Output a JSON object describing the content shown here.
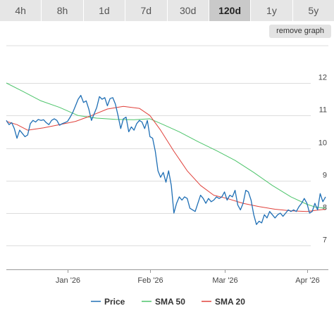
{
  "tabs": [
    {
      "label": "4h"
    },
    {
      "label": "8h"
    },
    {
      "label": "1d"
    },
    {
      "label": "7d"
    },
    {
      "label": "30d"
    },
    {
      "label": "120d",
      "active": true
    },
    {
      "label": "1y"
    },
    {
      "label": "5y"
    }
  ],
  "remove_graph_label": "remove graph",
  "colors": {
    "price": "#1f6fb5",
    "sma50": "#4cc46a",
    "sma20": "#e0403a",
    "grid": "#dddddd",
    "axis": "#444444"
  },
  "chart_data": {
    "type": "line",
    "xlabel": "",
    "ylabel": "",
    "x_ticks": [
      {
        "label": "Jan '26",
        "date": "2026-01-01"
      },
      {
        "label": "Feb '26",
        "date": "2026-02-01"
      },
      {
        "label": "Mar '26",
        "date": "2026-03-01"
      },
      {
        "label": "Apr '26",
        "date": "2026-04-01"
      }
    ],
    "y_ticks": [
      7,
      8,
      9,
      10,
      11,
      12
    ],
    "xlim": [
      "2025-12-09",
      "2026-04-08"
    ],
    "ylim": [
      6.9,
      12.2
    ],
    "grid": true,
    "legend_position": "bottom",
    "series": [
      {
        "name": "Price",
        "points": [
          [
            "2025-12-09",
            10.85
          ],
          [
            "2025-12-10",
            10.72
          ],
          [
            "2025-12-11",
            10.78
          ],
          [
            "2025-12-12",
            10.6
          ],
          [
            "2025-12-13",
            10.3
          ],
          [
            "2025-12-14",
            10.55
          ],
          [
            "2025-12-15",
            10.45
          ],
          [
            "2025-12-16",
            10.35
          ],
          [
            "2025-12-17",
            10.4
          ],
          [
            "2025-12-18",
            10.75
          ],
          [
            "2025-12-19",
            10.85
          ],
          [
            "2025-12-20",
            10.8
          ],
          [
            "2025-12-21",
            10.88
          ],
          [
            "2025-12-22",
            10.85
          ],
          [
            "2025-12-23",
            10.87
          ],
          [
            "2025-12-24",
            10.78
          ],
          [
            "2025-12-25",
            10.72
          ],
          [
            "2025-12-26",
            10.85
          ],
          [
            "2025-12-27",
            10.9
          ],
          [
            "2025-12-28",
            10.85
          ],
          [
            "2025-12-29",
            10.7
          ],
          [
            "2025-12-30",
            10.75
          ],
          [
            "2025-12-31",
            10.78
          ],
          [
            "2026-01-01",
            10.82
          ],
          [
            "2026-01-02",
            10.95
          ],
          [
            "2026-01-03",
            11.1
          ],
          [
            "2026-01-04",
            11.3
          ],
          [
            "2026-01-05",
            11.5
          ],
          [
            "2026-01-06",
            11.62
          ],
          [
            "2026-01-07",
            11.4
          ],
          [
            "2026-01-08",
            11.45
          ],
          [
            "2026-01-09",
            11.2
          ],
          [
            "2026-01-10",
            10.85
          ],
          [
            "2026-01-11",
            11.05
          ],
          [
            "2026-01-12",
            11.25
          ],
          [
            "2026-01-13",
            11.58
          ],
          [
            "2026-01-14",
            11.5
          ],
          [
            "2026-01-15",
            11.55
          ],
          [
            "2026-01-16",
            11.3
          ],
          [
            "2026-01-17",
            11.52
          ],
          [
            "2026-01-18",
            11.55
          ],
          [
            "2026-01-19",
            11.35
          ],
          [
            "2026-01-20",
            11.0
          ],
          [
            "2026-01-21",
            10.6
          ],
          [
            "2026-01-22",
            10.9
          ],
          [
            "2026-01-23",
            10.95
          ],
          [
            "2026-01-24",
            10.5
          ],
          [
            "2026-01-25",
            10.65
          ],
          [
            "2026-01-26",
            10.55
          ],
          [
            "2026-01-27",
            10.75
          ],
          [
            "2026-01-28",
            10.85
          ],
          [
            "2026-01-29",
            10.8
          ],
          [
            "2026-01-30",
            10.6
          ],
          [
            "2026-01-31",
            10.85
          ],
          [
            "2026-02-01",
            10.35
          ],
          [
            "2026-02-02",
            10.3
          ],
          [
            "2026-02-03",
            9.9
          ],
          [
            "2026-02-04",
            9.3
          ],
          [
            "2026-02-05",
            9.1
          ],
          [
            "2026-02-06",
            9.25
          ],
          [
            "2026-02-07",
            8.95
          ],
          [
            "2026-02-08",
            9.3
          ],
          [
            "2026-02-09",
            8.85
          ],
          [
            "2026-02-10",
            8.0
          ],
          [
            "2026-02-11",
            8.3
          ],
          [
            "2026-02-12",
            8.5
          ],
          [
            "2026-02-13",
            8.4
          ],
          [
            "2026-02-14",
            8.5
          ],
          [
            "2026-02-15",
            8.45
          ],
          [
            "2026-02-16",
            8.15
          ],
          [
            "2026-02-17",
            8.1
          ],
          [
            "2026-02-18",
            8.05
          ],
          [
            "2026-02-19",
            8.3
          ],
          [
            "2026-02-20",
            8.55
          ],
          [
            "2026-02-21",
            8.45
          ],
          [
            "2026-02-22",
            8.3
          ],
          [
            "2026-02-23",
            8.45
          ],
          [
            "2026-02-24",
            8.35
          ],
          [
            "2026-02-25",
            8.4
          ],
          [
            "2026-02-26",
            8.5
          ],
          [
            "2026-02-27",
            8.45
          ],
          [
            "2026-02-28",
            8.5
          ],
          [
            "2026-03-01",
            8.65
          ],
          [
            "2026-03-02",
            8.4
          ],
          [
            "2026-03-03",
            8.55
          ],
          [
            "2026-03-04",
            8.5
          ],
          [
            "2026-03-05",
            8.7
          ],
          [
            "2026-03-06",
            8.25
          ],
          [
            "2026-03-07",
            8.1
          ],
          [
            "2026-03-08",
            8.3
          ],
          [
            "2026-03-09",
            8.7
          ],
          [
            "2026-03-10",
            8.65
          ],
          [
            "2026-03-11",
            8.4
          ],
          [
            "2026-03-12",
            7.95
          ],
          [
            "2026-03-13",
            7.65
          ],
          [
            "2026-03-14",
            7.75
          ],
          [
            "2026-03-15",
            7.7
          ],
          [
            "2026-03-16",
            7.95
          ],
          [
            "2026-03-17",
            7.85
          ],
          [
            "2026-03-18",
            8.05
          ],
          [
            "2026-03-19",
            7.95
          ],
          [
            "2026-03-20",
            7.85
          ],
          [
            "2026-03-21",
            7.95
          ],
          [
            "2026-03-22",
            8.0
          ],
          [
            "2026-03-23",
            7.9
          ],
          [
            "2026-03-24",
            8.0
          ],
          [
            "2026-03-25",
            8.1
          ],
          [
            "2026-03-26",
            8.05
          ],
          [
            "2026-03-27",
            8.1
          ],
          [
            "2026-03-28",
            8.05
          ],
          [
            "2026-03-29",
            8.2
          ],
          [
            "2026-03-30",
            8.3
          ],
          [
            "2026-03-31",
            8.45
          ],
          [
            "2026-04-01",
            8.3
          ],
          [
            "2026-04-02",
            8.0
          ],
          [
            "2026-04-03",
            8.05
          ],
          [
            "2026-04-04",
            8.3
          ],
          [
            "2026-04-05",
            8.1
          ],
          [
            "2026-04-06",
            8.6
          ],
          [
            "2026-04-07",
            8.35
          ],
          [
            "2026-04-08",
            8.5
          ]
        ]
      },
      {
        "name": "SMA 50",
        "points": [
          [
            "2025-12-09",
            12.0
          ],
          [
            "2025-12-15",
            11.75
          ],
          [
            "2025-12-22",
            11.45
          ],
          [
            "2025-12-29",
            11.25
          ],
          [
            "2026-01-05",
            11.0
          ],
          [
            "2026-01-12",
            10.92
          ],
          [
            "2026-01-19",
            10.88
          ],
          [
            "2026-01-26",
            10.87
          ],
          [
            "2026-02-01",
            10.9
          ],
          [
            "2026-02-06",
            10.72
          ],
          [
            "2026-02-12",
            10.5
          ],
          [
            "2026-02-19",
            10.2
          ],
          [
            "2026-02-26",
            9.92
          ],
          [
            "2026-03-05",
            9.62
          ],
          [
            "2026-03-12",
            9.25
          ],
          [
            "2026-03-19",
            8.85
          ],
          [
            "2026-03-26",
            8.5
          ],
          [
            "2026-04-01",
            8.27
          ],
          [
            "2026-04-04",
            8.19
          ],
          [
            "2026-04-08",
            8.15
          ]
        ]
      },
      {
        "name": "SMA 20",
        "points": [
          [
            "2025-12-09",
            10.82
          ],
          [
            "2025-12-13",
            10.72
          ],
          [
            "2025-12-17",
            10.55
          ],
          [
            "2025-12-23",
            10.62
          ],
          [
            "2025-12-29",
            10.72
          ],
          [
            "2026-01-04",
            10.82
          ],
          [
            "2026-01-10",
            11.0
          ],
          [
            "2026-01-16",
            11.2
          ],
          [
            "2026-01-22",
            11.28
          ],
          [
            "2026-01-28",
            11.22
          ],
          [
            "2026-02-01",
            11.0
          ],
          [
            "2026-02-05",
            10.55
          ],
          [
            "2026-02-10",
            9.9
          ],
          [
            "2026-02-15",
            9.3
          ],
          [
            "2026-02-20",
            8.85
          ],
          [
            "2026-02-25",
            8.55
          ],
          [
            "2026-03-02",
            8.45
          ],
          [
            "2026-03-08",
            8.3
          ],
          [
            "2026-03-14",
            8.2
          ],
          [
            "2026-03-20",
            8.12
          ],
          [
            "2026-03-26",
            8.07
          ],
          [
            "2026-04-01",
            8.05
          ],
          [
            "2026-04-05",
            8.09
          ],
          [
            "2026-04-08",
            8.12
          ]
        ]
      }
    ]
  }
}
